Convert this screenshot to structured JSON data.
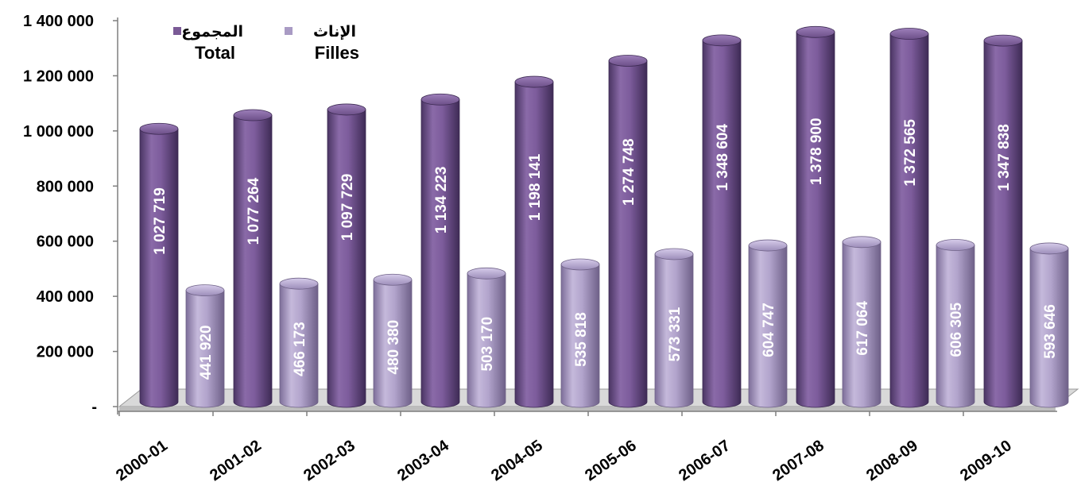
{
  "chart_data": {
    "type": "bar",
    "categories": [
      "2000-01",
      "2001-02",
      "2002-03",
      "2003-04",
      "2004-05",
      "2005-06",
      "2006-07",
      "2007-08",
      "2008-09",
      "2009-10"
    ],
    "series": [
      {
        "name": "المجموع Total",
        "name_ar": "المجموع",
        "name_fr": "Total",
        "color": "#7a5a96",
        "values": [
          1027719,
          1077264,
          1097729,
          1134223,
          1198141,
          1274748,
          1348604,
          1378900,
          1372565,
          1347838
        ],
        "labels": [
          "1 027 719",
          "1 077 264",
          "1 097 729",
          "1 134 223",
          "1 198 141",
          "1 274 748",
          "1 348 604",
          "1 378 900",
          "1 372 565",
          "1 347 838"
        ]
      },
      {
        "name": "الإناث Filles",
        "name_ar": "الإناث",
        "name_fr": "Filles",
        "color": "#a99bc4",
        "values": [
          441920,
          466173,
          480380,
          503170,
          535818,
          573331,
          604747,
          617064,
          606305,
          593646
        ],
        "labels": [
          "441 920",
          "466 173",
          "480 380",
          "503 170",
          "535 818",
          "573 331",
          "604 747",
          "617 064",
          "606 305",
          "593 646"
        ]
      }
    ],
    "y_ticks": [
      {
        "value": 0,
        "label": "-"
      },
      {
        "value": 200000,
        "label": "200 000"
      },
      {
        "value": 400000,
        "label": "400 000"
      },
      {
        "value": 600000,
        "label": "600 000"
      },
      {
        "value": 800000,
        "label": "800 000"
      },
      {
        "value": 1000000,
        "label": "1 000 000"
      },
      {
        "value": 1200000,
        "label": "1 200 000"
      },
      {
        "value": 1400000,
        "label": "1 400 000"
      }
    ],
    "ylim": [
      0,
      1400000
    ],
    "title": "",
    "xlabel": "",
    "ylabel": "",
    "grid": false,
    "legend_position": "top-left",
    "style": "3d-cylinder"
  }
}
